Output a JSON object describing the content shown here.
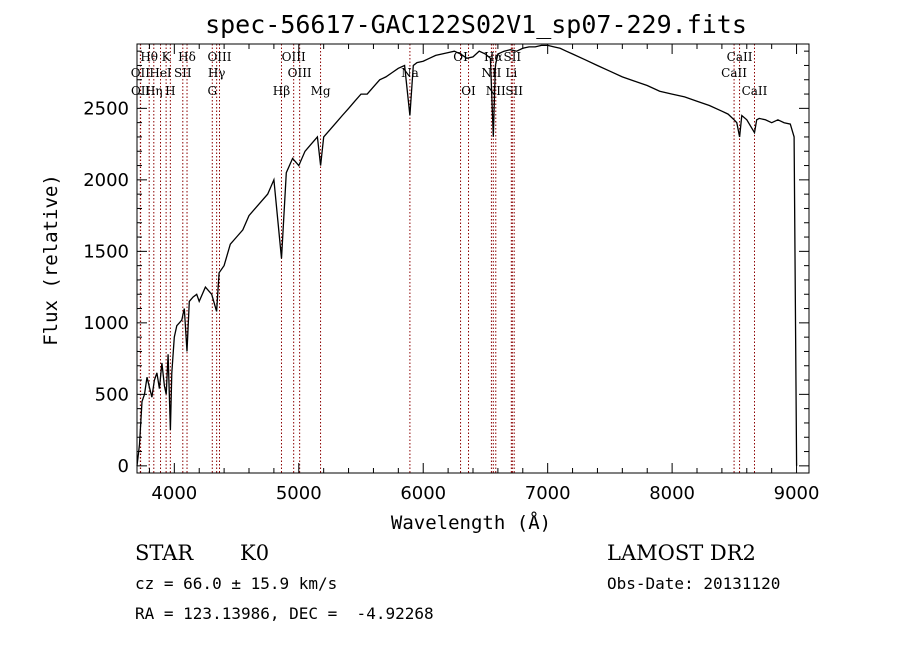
{
  "chart_data": {
    "type": "line",
    "title": "spec-56617-GAC122S02V1_sp07-229.fits",
    "xlabel": "Wavelength (Å)",
    "ylabel": "Flux (relative)",
    "xlim": [
      3700,
      9100
    ],
    "ylim": [
      -50,
      2950
    ],
    "x_ticks": [
      4000,
      5000,
      6000,
      7000,
      8000,
      9000
    ],
    "y_ticks": [
      0,
      500,
      1000,
      1500,
      2000,
      2500
    ],
    "grid": false,
    "series": [
      {
        "x": [
          3700,
          3720,
          3740,
          3760,
          3780,
          3800,
          3820,
          3840,
          3860,
          3880,
          3900,
          3920,
          3935,
          3950,
          3968,
          3980,
          4000,
          4020,
          4040,
          4060,
          4080,
          4102,
          4120,
          4150,
          4180,
          4200,
          4250,
          4300,
          4340,
          4360,
          4400,
          4450,
          4500,
          4550,
          4600,
          4650,
          4700,
          4750,
          4800,
          4861,
          4900,
          4950,
          5000,
          5050,
          5100,
          5150,
          5175,
          5200,
          5250,
          5300,
          5350,
          5400,
          5450,
          5500,
          5550,
          5600,
          5650,
          5700,
          5750,
          5800,
          5850,
          5893,
          5920,
          5950,
          6000,
          6050,
          6100,
          6150,
          6200,
          6250,
          6300,
          6350,
          6400,
          6450,
          6500,
          6540,
          6563,
          6580,
          6600,
          6650,
          6700,
          6750,
          6800,
          6850,
          6900,
          6950,
          7000,
          7050,
          7100,
          7150,
          7200,
          7300,
          7400,
          7500,
          7600,
          7700,
          7800,
          7900,
          8000,
          8100,
          8200,
          8300,
          8400,
          8450,
          8498,
          8520,
          8542,
          8560,
          8600,
          8662,
          8680,
          8700,
          8750,
          8800,
          8850,
          8900,
          8950,
          8980,
          9000
        ],
        "values": [
          0,
          150,
          450,
          500,
          620,
          550,
          480,
          600,
          650,
          540,
          720,
          560,
          500,
          780,
          250,
          650,
          900,
          980,
          1000,
          1020,
          1100,
          800,
          1150,
          1180,
          1200,
          1150,
          1250,
          1200,
          1080,
          1350,
          1400,
          1550,
          1600,
          1650,
          1750,
          1800,
          1850,
          1900,
          2000,
          1450,
          2050,
          2150,
          2100,
          2200,
          2250,
          2300,
          2100,
          2300,
          2350,
          2400,
          2450,
          2500,
          2550,
          2600,
          2600,
          2650,
          2700,
          2720,
          2750,
          2780,
          2800,
          2450,
          2800,
          2820,
          2830,
          2850,
          2870,
          2880,
          2890,
          2900,
          2880,
          2850,
          2860,
          2900,
          2880,
          2850,
          2300,
          2800,
          2880,
          2900,
          2910,
          2900,
          2920,
          2930,
          2930,
          2940,
          2940,
          2930,
          2920,
          2900,
          2880,
          2840,
          2800,
          2760,
          2720,
          2690,
          2660,
          2620,
          2600,
          2580,
          2550,
          2520,
          2480,
          2460,
          2420,
          2400,
          2300,
          2450,
          2420,
          2330,
          2420,
          2430,
          2420,
          2400,
          2420,
          2400,
          2390,
          2300,
          0
        ]
      }
    ],
    "line_markers": [
      {
        "label": "Hθ",
        "x": 3798,
        "row": 0
      },
      {
        "label": "OII",
        "x": 3727,
        "row": 1
      },
      {
        "label": "HeI",
        "x": 3889,
        "row": 1
      },
      {
        "label": "K",
        "x": 3934,
        "row": 0
      },
      {
        "label": "Hδ",
        "x": 4102,
        "row": 0
      },
      {
        "label": "SII",
        "x": 4068,
        "row": 1
      },
      {
        "label": "OIII",
        "x": 4363,
        "row": 0
      },
      {
        "label": "Hγ",
        "x": 4340,
        "row": 1
      },
      {
        "label": "OIII",
        "x": 4959,
        "row": 0
      },
      {
        "label": "OIII",
        "x": 5007,
        "row": 1
      },
      {
        "label": "OII",
        "x": 3729,
        "row": 2
      },
      {
        "label": "Hη",
        "x": 3835,
        "row": 2
      },
      {
        "label": "H",
        "x": 3968,
        "row": 2
      },
      {
        "label": "G",
        "x": 4305,
        "row": 2
      },
      {
        "label": "Hβ",
        "x": 4861,
        "row": 2
      },
      {
        "label": "Mg",
        "x": 5175,
        "row": 2
      },
      {
        "label": "Na",
        "x": 5893,
        "row": 1
      },
      {
        "label": "OI",
        "x": 6300,
        "row": 0
      },
      {
        "label": "OI",
        "x": 6364,
        "row": 2
      },
      {
        "label": "Hα",
        "x": 6563,
        "row": 0
      },
      {
        "label": "NII",
        "x": 6548,
        "row": 1
      },
      {
        "label": "NII",
        "x": 6583,
        "row": 2
      },
      {
        "label": "SII",
        "x": 6716,
        "row": 0
      },
      {
        "label": "Li",
        "x": 6708,
        "row": 1
      },
      {
        "label": "SII",
        "x": 6731,
        "row": 2
      },
      {
        "label": "CaII",
        "x": 8542,
        "row": 0
      },
      {
        "label": "CaII",
        "x": 8498,
        "row": 1
      },
      {
        "label": "CaII",
        "x": 8662,
        "row": 2
      }
    ]
  },
  "info": {
    "class": "STAR",
    "subclass": "K0",
    "survey": "LAMOST DR2",
    "cz": "cz = 66.0 ± 15.9 km/s",
    "obs_date": "Obs-Date: 20131120",
    "coords": "RA = 123.13986, DEC =  -4.92268"
  },
  "colors": {
    "spectrum": "#000000",
    "marker_line": "#8b0000",
    "axes": "#000000"
  }
}
